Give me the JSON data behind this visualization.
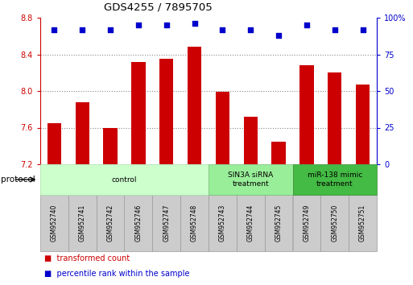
{
  "title": "GDS4255 / 7895705",
  "samples": [
    "GSM952740",
    "GSM952741",
    "GSM952742",
    "GSM952746",
    "GSM952747",
    "GSM952748",
    "GSM952743",
    "GSM952744",
    "GSM952745",
    "GSM952749",
    "GSM952750",
    "GSM952751"
  ],
  "transformed_counts": [
    7.65,
    7.88,
    7.6,
    8.32,
    8.35,
    8.48,
    7.99,
    7.72,
    7.45,
    8.28,
    8.2,
    8.07
  ],
  "percentile_ranks": [
    92,
    92,
    92,
    95,
    95,
    96,
    92,
    92,
    88,
    95,
    92,
    92
  ],
  "ylim_left": [
    7.2,
    8.8
  ],
  "ylim_right": [
    0,
    100
  ],
  "yticks_left": [
    7.2,
    7.6,
    8.0,
    8.4,
    8.8
  ],
  "yticks_right": [
    0,
    25,
    50,
    75,
    100
  ],
  "bar_color": "#cc0000",
  "dot_color": "#0000cc",
  "groups": [
    {
      "label": "control",
      "start": 0,
      "end": 6,
      "color": "#ccffcc",
      "border": "#aaddaa"
    },
    {
      "label": "SIN3A siRNA\ntreatment",
      "start": 6,
      "end": 9,
      "color": "#99ee99",
      "border": "#77bb77"
    },
    {
      "label": "miR-138 mimic\ntreatment",
      "start": 9,
      "end": 12,
      "color": "#44bb44",
      "border": "#338833"
    }
  ],
  "legend_items": [
    {
      "label": "transformed count",
      "color": "#cc0000"
    },
    {
      "label": "percentile rank within the sample",
      "color": "#0000cc"
    }
  ],
  "sample_box_color": "#cccccc",
  "sample_box_border": "#999999",
  "protocol_label": "protocol",
  "bar_width": 0.5
}
